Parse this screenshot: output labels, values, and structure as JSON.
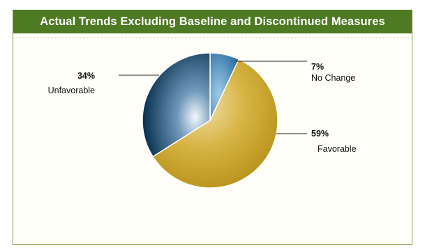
{
  "chart_data": {
    "type": "pie",
    "title": "Actual Trends Excluding Baseline and Discontinued Measures",
    "slices": [
      {
        "label": "No Change",
        "value": 7,
        "value_label": "7%",
        "color": "#1f6fa8"
      },
      {
        "label": "Favorable",
        "value": 59,
        "value_label": "59%",
        "color": "#c9a227"
      },
      {
        "label": "Unfavorable",
        "value": 34,
        "value_label": "34%",
        "color": "#0e3a5e"
      }
    ],
    "start": "top, clockwise",
    "legend": "none (callout labels)"
  },
  "colors": {
    "title_bar": "#4f7a24",
    "border": "#8a9a4e"
  }
}
